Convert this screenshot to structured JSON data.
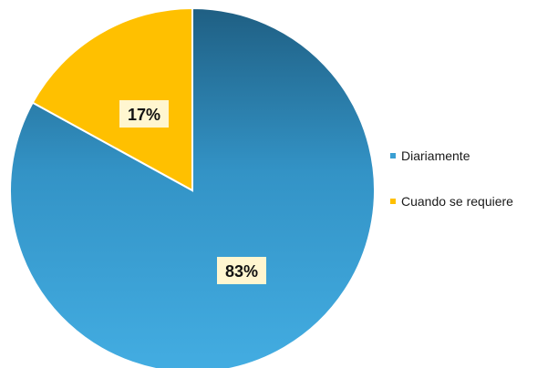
{
  "chart_data": {
    "type": "pie",
    "categories": [
      "Diariamente",
      "Cuando se requiere"
    ],
    "values": [
      83,
      17
    ],
    "value_labels": [
      "83%",
      "17%"
    ],
    "colors": [
      "#3a9fd3",
      "#ffc000"
    ],
    "legend_position": "right"
  }
}
